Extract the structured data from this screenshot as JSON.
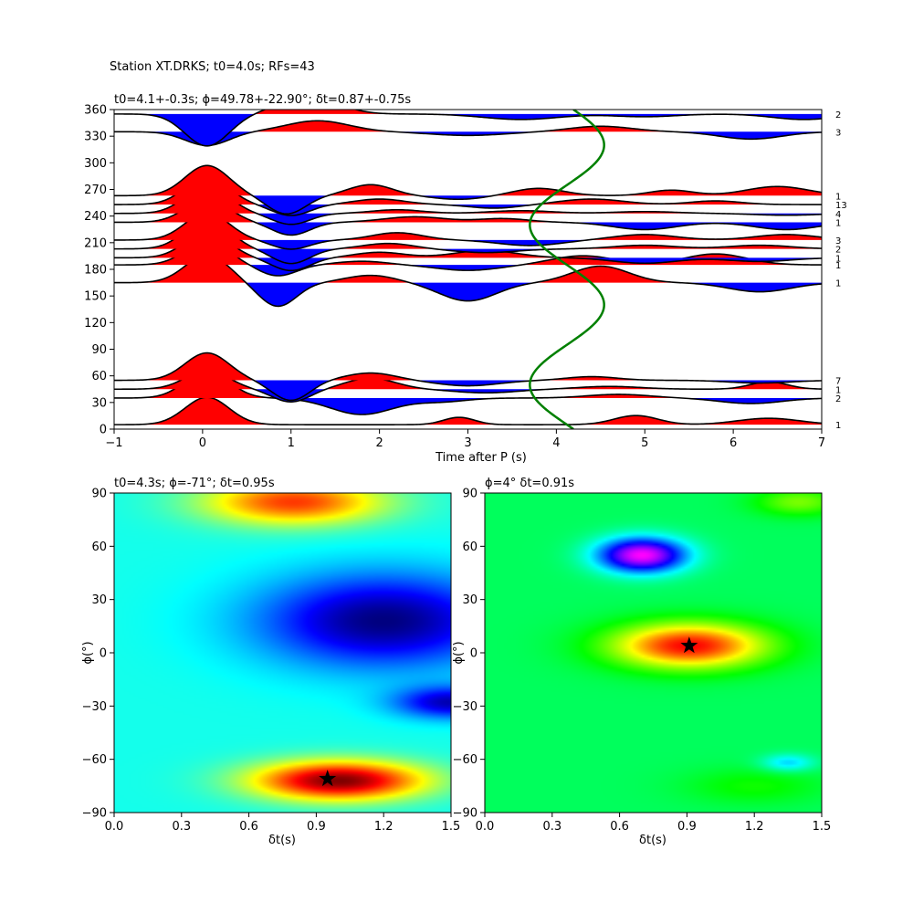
{
  "figure": {
    "suptitle": "Station XT.DRKS; t0=4.0s; RFs=43"
  },
  "chart_data": [
    {
      "type": "line",
      "title": "t0=4.1+-0.3s; ϕ=49.78+-22.90°; δt=0.87+-0.75s",
      "xlabel": "Time after P (s)",
      "ylabel": "",
      "xlim": [
        -1,
        7
      ],
      "ylim": [
        0,
        360
      ],
      "xticks": [
        -1,
        0,
        1,
        2,
        3,
        4,
        5,
        6,
        7
      ],
      "yticks": [
        0,
        30,
        60,
        90,
        120,
        150,
        180,
        210,
        240,
        270,
        300,
        330,
        360
      ],
      "traces": [
        {
          "baz": 5,
          "count": "1",
          "amp": 30,
          "lobes": [
            [
              2.9,
              0.25,
              8
            ],
            [
              4.9,
              0.35,
              10
            ],
            [
              6.4,
              0.5,
              7
            ]
          ]
        },
        {
          "baz": 35,
          "count": "2",
          "amp": 30,
          "lobes": [
            [
              1.8,
              0.5,
              -18
            ],
            [
              2.7,
              0.4,
              -4
            ],
            [
              4.7,
              0.5,
              4
            ],
            [
              6.2,
              0.5,
              -6
            ]
          ]
        },
        {
          "baz": 45,
          "count": "1",
          "amp": 20,
          "lobes": [
            [
              1.0,
              0.3,
              -14
            ],
            [
              1.9,
              0.4,
              12
            ],
            [
              3.2,
              0.5,
              -4
            ],
            [
              4.6,
              0.5,
              3
            ],
            [
              6.4,
              0.3,
              8
            ]
          ]
        },
        {
          "baz": 55,
          "count": "7",
          "amp": 30,
          "lobes": [
            [
              1.0,
              0.3,
              -22
            ],
            [
              1.9,
              0.4,
              8
            ],
            [
              3.0,
              0.5,
              -6
            ],
            [
              4.4,
              0.4,
              4
            ],
            [
              6.3,
              0.5,
              -3
            ]
          ]
        },
        {
          "baz": 165,
          "count": "1",
          "amp": 30,
          "lobes": [
            [
              0.85,
              0.3,
              -26
            ],
            [
              1.9,
              0.4,
              8
            ],
            [
              3.0,
              0.45,
              -20
            ],
            [
              4.5,
              0.45,
              18
            ],
            [
              6.3,
              0.5,
              -10
            ]
          ]
        },
        {
          "baz": 185,
          "count": "1",
          "amp": 25,
          "lobes": [
            [
              0.85,
              0.3,
              -12
            ],
            [
              1.8,
              0.4,
              4
            ],
            [
              3.0,
              0.5,
              -6
            ],
            [
              4.3,
              0.5,
              10
            ],
            [
              5.8,
              0.5,
              12
            ]
          ]
        },
        {
          "baz": 193,
          "count": "1",
          "amp": 28,
          "lobes": [
            [
              1.0,
              0.3,
              -14
            ],
            [
              2.0,
              0.4,
              6
            ],
            [
              3.2,
              0.5,
              8
            ],
            [
              5.0,
              0.5,
              -6
            ],
            [
              6.3,
              0.5,
              -4
            ]
          ]
        },
        {
          "baz": 203,
          "count": "2",
          "amp": 33,
          "lobes": [
            [
              1.0,
              0.3,
              -16
            ],
            [
              2.1,
              0.4,
              6
            ],
            [
              3.2,
              0.5,
              -4
            ],
            [
              5.0,
              0.5,
              4
            ],
            [
              6.3,
              0.5,
              4
            ]
          ]
        },
        {
          "baz": 213,
          "count": "3",
          "amp": 30,
          "lobes": [
            [
              1.0,
              0.3,
              -10
            ],
            [
              2.2,
              0.4,
              8
            ],
            [
              3.7,
              0.5,
              -6
            ],
            [
              5.0,
              0.5,
              6
            ],
            [
              6.6,
              0.5,
              6
            ]
          ]
        },
        {
          "baz": 233,
          "count": "1",
          "amp": 25,
          "lobes": [
            [
              1.0,
              0.3,
              -14
            ],
            [
              2.4,
              0.5,
              6
            ],
            [
              3.4,
              0.4,
              4
            ],
            [
              5.0,
              0.5,
              -8
            ],
            [
              6.6,
              0.5,
              -8
            ]
          ]
        },
        {
          "baz": 243,
          "count": "4",
          "amp": 30,
          "lobes": [
            [
              1.0,
              0.3,
              -12
            ],
            [
              2.2,
              0.4,
              4
            ],
            [
              3.6,
              0.5,
              3
            ],
            [
              5.0,
              0.5,
              2
            ],
            [
              6.6,
              0.5,
              -2
            ]
          ]
        },
        {
          "baz": 253,
          "count": "13",
          "amp": 30,
          "lobes": [
            [
              1.0,
              0.3,
              -12
            ],
            [
              2.0,
              0.4,
              6
            ],
            [
              3.3,
              0.4,
              -4
            ],
            [
              4.4,
              0.5,
              6
            ],
            [
              5.8,
              0.4,
              4
            ]
          ]
        },
        {
          "baz": 263,
          "count": "1",
          "amp": 33,
          "lobes": [
            [
              0.95,
              0.3,
              -20
            ],
            [
              1.9,
              0.35,
              12
            ],
            [
              2.9,
              0.4,
              -4
            ],
            [
              3.8,
              0.4,
              8
            ],
            [
              5.3,
              0.35,
              6
            ],
            [
              6.5,
              0.5,
              10
            ]
          ]
        },
        {
          "baz": 335,
          "count": "3",
          "amp": -15,
          "lobes": [
            [
              1.3,
              0.5,
              12
            ],
            [
              3.0,
              0.6,
              -4
            ],
            [
              4.5,
              0.5,
              6
            ],
            [
              6.2,
              0.5,
              -8
            ]
          ]
        },
        {
          "baz": 355,
          "count": "2",
          "amp": -35,
          "lobes": [
            [
              1.2,
              0.45,
              20
            ],
            [
              3.6,
              0.6,
              -6
            ],
            [
              5.0,
              0.5,
              -3
            ],
            [
              6.8,
              0.5,
              -6
            ]
          ]
        }
      ],
      "moveout_curve": {
        "color": "#008000",
        "t_mean": 4.12,
        "t_amplitude": 0.42,
        "t_phase_deg": 50
      }
    },
    {
      "type": "heatmap",
      "title": "t0=4.3s; ϕ=-71°; δt=0.95s",
      "xlabel": "δt(s)",
      "ylabel": "ϕ(°)",
      "xlim": [
        0.0,
        1.5
      ],
      "ylim": [
        -90,
        90
      ],
      "xticks": [
        "0.0",
        "0.3",
        "0.6",
        "0.9",
        "1.2",
        "1.5"
      ],
      "yticks": [
        "−90",
        "−60",
        "−30",
        "0",
        "30",
        "60",
        "90"
      ],
      "colormap": "jet",
      "best": {
        "dt": 0.95,
        "phi": -71
      },
      "peaks": [
        {
          "dt": 1.0,
          "phi": -72,
          "sx": 0.38,
          "sy": 11,
          "w": 1.0
        },
        {
          "dt": 0.8,
          "phi": 85,
          "sx": 0.4,
          "sy": 13,
          "w": 0.7
        },
        {
          "dt": 1.2,
          "phi": 18,
          "sx": 0.55,
          "sy": 26,
          "w": -0.65
        },
        {
          "dt": 1.5,
          "phi": -28,
          "sx": 0.25,
          "sy": 9,
          "w": -0.55
        }
      ]
    },
    {
      "type": "heatmap",
      "title": "ϕ=4° δt=0.91s",
      "xlabel": "δt(s)",
      "ylabel": "ϕ(°)",
      "xlim": [
        0.0,
        1.5
      ],
      "ylim": [
        -90,
        90
      ],
      "xticks": [
        "0.0",
        "0.3",
        "0.6",
        "0.9",
        "1.2",
        "1.5"
      ],
      "yticks": [
        "−90",
        "−60",
        "−30",
        "0",
        "30",
        "60",
        "90"
      ],
      "colormap": "hsv_r",
      "best": {
        "dt": 0.91,
        "phi": 4
      },
      "peaks": [
        {
          "dt": 0.91,
          "phi": 4,
          "sx": 0.35,
          "sy": 13,
          "w": 0.85
        },
        {
          "dt": 0.7,
          "phi": 55,
          "sx": 0.2,
          "sy": 10,
          "w": -0.95
        },
        {
          "dt": 1.4,
          "phi": 85,
          "sx": 0.2,
          "sy": 8,
          "w": 0.3
        },
        {
          "dt": 1.35,
          "phi": -62,
          "sx": 0.12,
          "sy": 5,
          "w": -0.3
        },
        {
          "dt": 1.2,
          "phi": -75,
          "sx": 0.3,
          "sy": 10,
          "w": 0.15
        }
      ]
    }
  ]
}
